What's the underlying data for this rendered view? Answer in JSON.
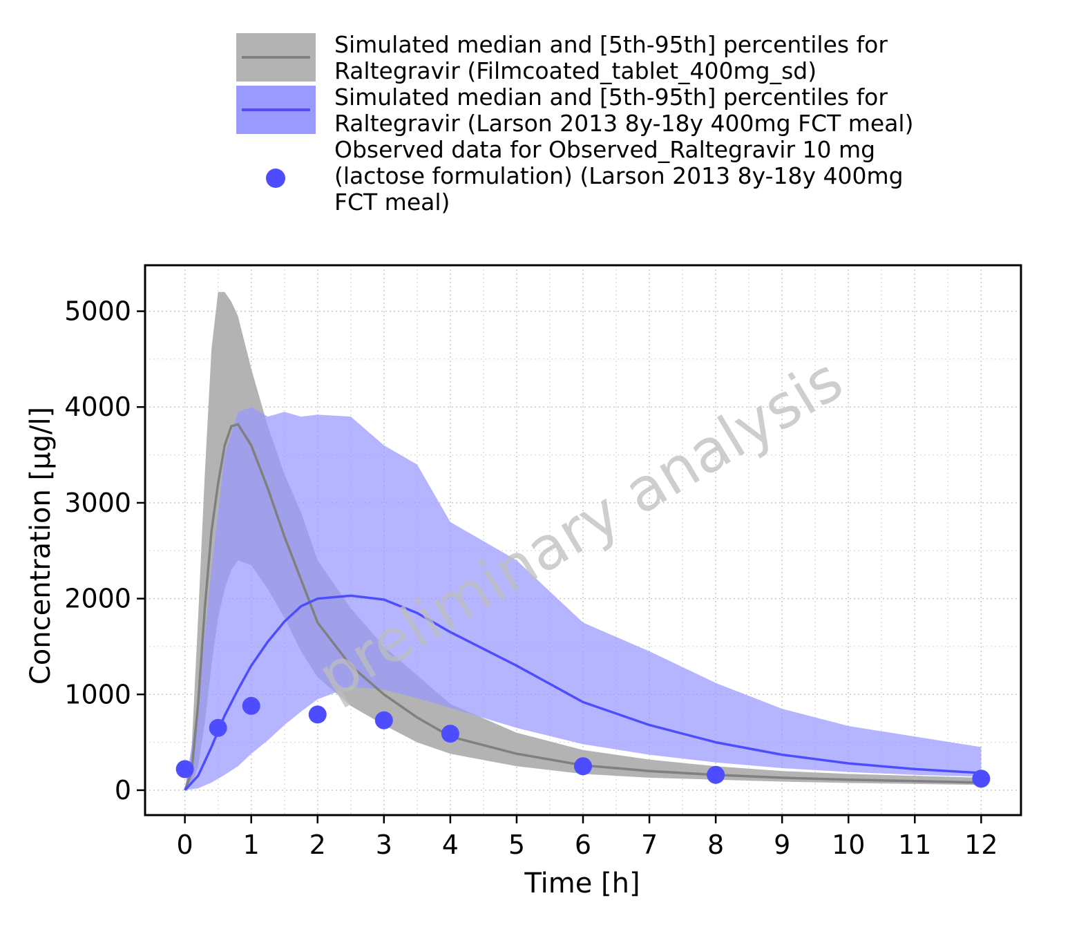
{
  "colors": {
    "sim_adult_band": "#b3b3b3",
    "sim_adult_line": "#808080",
    "sim_ped_band": "#9999ff",
    "sim_ped_line": "#4d4dff",
    "observed": "#4d4dff",
    "watermark": "#bdbdbd"
  },
  "legend": [
    {
      "kind": "band",
      "line1": "Simulated median and [5th-95th] percentiles for",
      "line2": "Raltegravir (Filmcoated_tablet_400mg_sd)"
    },
    {
      "kind": "band",
      "line1": "Simulated median and [5th-95th] percentiles for",
      "line2": "Raltegravir (Larson 2013 8y-18y 400mg FCT meal)"
    },
    {
      "kind": "point",
      "line1": "Observed data for Observed_Raltegravir 10 mg",
      "line2": "(lactose formulation) (Larson 2013 8y-18y 400mg",
      "line3": "FCT meal)"
    }
  ],
  "watermark": "preliminary analysis",
  "chart_data": {
    "type": "line",
    "xlabel": "Time [h]",
    "ylabel": "Concentration [µg/l]",
    "xlim": [
      -0.6,
      12.6
    ],
    "ylim": [
      -260,
      5480
    ],
    "x_ticks": [
      0,
      1,
      2,
      3,
      4,
      5,
      6,
      7,
      8,
      9,
      10,
      11,
      12
    ],
    "y_ticks": [
      0,
      1000,
      2000,
      3000,
      4000,
      5000
    ],
    "grid": true,
    "legend_position": "top",
    "series": [
      {
        "name": "Simulated median and [5th-95th] percentiles for Raltegravir (Filmcoated_tablet_400mg_sd)",
        "type": "band-with-median",
        "x": [
          0,
          0.1,
          0.2,
          0.3,
          0.4,
          0.5,
          0.6,
          0.7,
          0.8,
          1.0,
          1.25,
          1.5,
          1.75,
          2,
          2.5,
          3,
          3.5,
          4,
          5,
          6,
          7,
          8,
          9,
          10,
          11,
          12
        ],
        "median": [
          0,
          180,
          900,
          1900,
          2700,
          3200,
          3600,
          3800,
          3820,
          3600,
          3150,
          2650,
          2200,
          1750,
          1300,
          1000,
          760,
          560,
          380,
          260,
          200,
          160,
          130,
          110,
          95,
          80
        ],
        "p5": [
          0,
          50,
          250,
          700,
          1300,
          1800,
          2100,
          2300,
          2400,
          2350,
          2100,
          1800,
          1450,
          1180,
          880,
          680,
          500,
          380,
          250,
          170,
          130,
          110,
          90,
          75,
          65,
          55
        ],
        "p95": [
          0,
          400,
          1800,
          3300,
          4600,
          5200,
          5200,
          5100,
          4950,
          4400,
          3800,
          3300,
          2900,
          2400,
          1900,
          1500,
          1200,
          900,
          600,
          420,
          320,
          250,
          200,
          170,
          150,
          130
        ]
      },
      {
        "name": "Simulated median and [5th-95th] percentiles for Raltegravir (Larson 2013 8y-18y 400mg FCT meal)",
        "type": "band-with-median",
        "x": [
          0,
          0.2,
          0.4,
          0.6,
          0.8,
          1.0,
          1.25,
          1.5,
          1.75,
          2,
          2.5,
          3,
          3.5,
          4,
          5,
          6,
          7,
          8,
          9,
          10,
          11,
          12
        ],
        "median": [
          0,
          150,
          450,
          780,
          1050,
          1300,
          1550,
          1760,
          1920,
          2000,
          2030,
          1990,
          1850,
          1650,
          1300,
          920,
          680,
          500,
          370,
          280,
          220,
          180
        ],
        "p5": [
          0,
          20,
          80,
          160,
          250,
          380,
          520,
          680,
          820,
          950,
          1080,
          1050,
          960,
          860,
          650,
          480,
          370,
          290,
          230,
          190,
          160,
          140
        ],
        "p95": [
          0,
          900,
          2300,
          3500,
          3950,
          4000,
          3900,
          3950,
          3900,
          3920,
          3900,
          3600,
          3400,
          2800,
          2400,
          1750,
          1450,
          1120,
          850,
          670,
          560,
          450
        ]
      },
      {
        "name": "Observed data for Observed_Raltegravir 10 mg (lactose formulation) (Larson 2013 8y-18y 400mg FCT meal)",
        "type": "scatter",
        "x": [
          0,
          0.5,
          1,
          2,
          3,
          4,
          6,
          8,
          12
        ],
        "y": [
          220,
          650,
          880,
          790,
          730,
          590,
          250,
          160,
          120
        ]
      }
    ]
  }
}
